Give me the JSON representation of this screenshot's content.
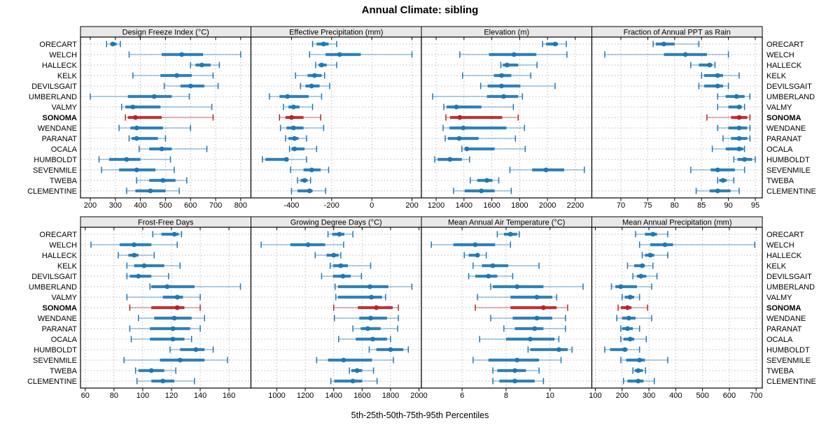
{
  "title": "Annual Climate: sibling",
  "caption": "5th-25th-50th-75th-95th Percentiles",
  "colors": {
    "series": "#1f77b4",
    "highlight": "#b82328",
    "strip_bg": "#e8e8e8",
    "grid": "#bdbdbd",
    "border": "#000000"
  },
  "chart_data": {
    "type": "dotplot-percentile-trellis",
    "percentile_labels": [
      5,
      25,
      50,
      75,
      95
    ],
    "grid": {
      "rows": 2,
      "cols": 4
    },
    "sites": [
      "ORECART",
      "WELCH",
      "HALLECK",
      "KELK",
      "DEVILSGAIT",
      "UMBERLAND",
      "VALMY",
      "SONOMA",
      "WENDANE",
      "PARANAT",
      "OCALA",
      "HUMBOLDT",
      "SEVENMILE",
      "TWEBA",
      "CLEMENTINE"
    ],
    "highlight_site": "SONOMA",
    "panels": [
      {
        "title": "Design Freeze Index (°C)",
        "ticks": [
          200,
          300,
          400,
          500,
          600,
          700,
          800
        ],
        "xlim": [
          161,
          841
        ],
        "values": [
          [
            265,
            280,
            290,
            305,
            320
          ],
          [
            355,
            485,
            565,
            650,
            800
          ],
          [
            600,
            620,
            645,
            680,
            715
          ],
          [
            370,
            480,
            545,
            605,
            690
          ],
          [
            495,
            560,
            600,
            655,
            710
          ],
          [
            200,
            350,
            455,
            525,
            595
          ],
          [
            325,
            340,
            370,
            480,
            685
          ],
          [
            340,
            350,
            380,
            485,
            690
          ],
          [
            315,
            360,
            385,
            490,
            600
          ],
          [
            355,
            365,
            385,
            470,
            500
          ],
          [
            395,
            435,
            485,
            525,
            665
          ],
          [
            235,
            275,
            345,
            400,
            520
          ],
          [
            245,
            315,
            385,
            460,
            535
          ],
          [
            385,
            435,
            490,
            540,
            585
          ],
          [
            345,
            380,
            440,
            500,
            555
          ]
        ]
      },
      {
        "title": "Effective Precipitation (mm)",
        "ticks": [
          -400,
          -200,
          0,
          200
        ],
        "xlim": [
          -602,
          247
        ],
        "values": [
          [
            -295,
            -275,
            -240,
            -215,
            -175
          ],
          [
            -310,
            -230,
            -160,
            -55,
            200
          ],
          [
            -280,
            -265,
            -250,
            -225,
            -175
          ],
          [
            -380,
            -320,
            -285,
            -250,
            -235
          ],
          [
            -355,
            -330,
            -300,
            -260,
            -210
          ],
          [
            -510,
            -460,
            -420,
            -315,
            -250
          ],
          [
            -440,
            -415,
            -390,
            -360,
            -295
          ],
          [
            -460,
            -430,
            -400,
            -340,
            -255
          ],
          [
            -455,
            -425,
            -390,
            -340,
            -240
          ],
          [
            -430,
            -415,
            -385,
            -365,
            -325
          ],
          [
            -410,
            -400,
            -385,
            -335,
            -275
          ],
          [
            -545,
            -530,
            -425,
            -415,
            -325
          ],
          [
            -405,
            -340,
            -300,
            -255,
            -215
          ],
          [
            -370,
            -355,
            -335,
            -320,
            -305
          ],
          [
            -400,
            -370,
            -310,
            -295,
            -230
          ]
        ]
      },
      {
        "title": "Elevation (m)",
        "ticks": [
          1200,
          1400,
          1600,
          1800,
          2000,
          2200
        ],
        "xlim": [
          1094,
          2319
        ],
        "values": [
          [
            1965,
            1990,
            2055,
            2075,
            2135
          ],
          [
            1370,
            1580,
            1760,
            1920,
            2140
          ],
          [
            1665,
            1680,
            1710,
            1790,
            1925
          ],
          [
            1390,
            1615,
            1670,
            1740,
            1880
          ],
          [
            1520,
            1570,
            1670,
            1805,
            2055
          ],
          [
            1175,
            1565,
            1685,
            1790,
            1820
          ],
          [
            1255,
            1275,
            1345,
            1525,
            1755
          ],
          [
            1270,
            1300,
            1370,
            1675,
            1790
          ],
          [
            1250,
            1295,
            1395,
            1705,
            1835
          ],
          [
            1265,
            1285,
            1365,
            1505,
            1770
          ],
          [
            1385,
            1405,
            1420,
            1620,
            1840
          ],
          [
            1190,
            1210,
            1300,
            1385,
            1440
          ],
          [
            1730,
            1890,
            1990,
            2120,
            2265
          ],
          [
            1445,
            1495,
            1565,
            1605,
            1650
          ],
          [
            1325,
            1405,
            1525,
            1620,
            1740
          ]
        ]
      },
      {
        "title": "Fraction of Annual PPT as Rain",
        "ticks": [
          70,
          75,
          80,
          85,
          90,
          95
        ],
        "xlim": [
          64.6,
          96.3
        ],
        "values": [
          [
            76,
            76.5,
            78,
            80,
            84.5
          ],
          [
            67,
            78,
            82,
            86,
            90
          ],
          [
            83,
            84.5,
            86.5,
            87,
            87.5
          ],
          [
            85,
            85.5,
            88,
            89,
            92
          ],
          [
            84.5,
            85.5,
            88,
            89,
            90
          ],
          [
            88,
            89.5,
            91.5,
            93,
            94
          ],
          [
            88,
            90,
            92,
            92.5,
            93
          ],
          [
            86,
            90.5,
            92,
            93.5,
            94
          ],
          [
            88,
            90,
            92,
            93.5,
            94
          ],
          [
            89,
            90.5,
            92,
            93.5,
            94
          ],
          [
            87,
            89.5,
            92,
            92.8,
            93
          ],
          [
            91,
            91.7,
            93,
            94.4,
            95
          ],
          [
            83,
            86.7,
            88,
            91.2,
            93
          ],
          [
            88,
            88.3,
            89,
            89.7,
            91
          ],
          [
            84,
            86.5,
            88,
            90.4,
            92
          ]
        ]
      },
      {
        "title": "Frost-Free Days",
        "ticks": [
          60,
          80,
          100,
          120,
          140,
          160
        ],
        "xlim": [
          56.7,
          175.3
        ],
        "values": [
          [
            107,
            113,
            122,
            125,
            127
          ],
          [
            64,
            84,
            94,
            106,
            124
          ],
          [
            83,
            90,
            94,
            97,
            108
          ],
          [
            89,
            94,
            101,
            115,
            126
          ],
          [
            89,
            91,
            97,
            106,
            118
          ],
          [
            105,
            106,
            117,
            136,
            168
          ],
          [
            89,
            114,
            124,
            128,
            140
          ],
          [
            91,
            106,
            124,
            129,
            140
          ],
          [
            97,
            108,
            122,
            134,
            143
          ],
          [
            91,
            105,
            121,
            133,
            140
          ],
          [
            92,
            105,
            121,
            129,
            134
          ],
          [
            119,
            126,
            137,
            143,
            149
          ],
          [
            87,
            112,
            126,
            143,
            159
          ],
          [
            95,
            97,
            106,
            115,
            123
          ],
          [
            96,
            106,
            114,
            122,
            136
          ]
        ]
      },
      {
        "title": "Growing Degree Days (°C)",
        "ticks": [
          1000,
          1200,
          1400,
          1600,
          1800,
          2000
        ],
        "xlim": [
          818,
          2017
        ],
        "values": [
          [
            1360,
            1390,
            1440,
            1475,
            1535
          ],
          [
            890,
            1095,
            1220,
            1340,
            1470
          ],
          [
            1270,
            1350,
            1400,
            1435,
            1450
          ],
          [
            1375,
            1395,
            1450,
            1500,
            1660
          ],
          [
            1315,
            1395,
            1465,
            1520,
            1595
          ],
          [
            1410,
            1430,
            1655,
            1785,
            1950
          ],
          [
            1415,
            1430,
            1665,
            1740,
            1765
          ],
          [
            1400,
            1570,
            1700,
            1815,
            1855
          ],
          [
            1405,
            1580,
            1660,
            1775,
            1855
          ],
          [
            1535,
            1590,
            1640,
            1730,
            1850
          ],
          [
            1435,
            1555,
            1675,
            1775,
            1800
          ],
          [
            1650,
            1700,
            1800,
            1890,
            1925
          ],
          [
            1280,
            1360,
            1470,
            1670,
            1820
          ],
          [
            1510,
            1525,
            1565,
            1600,
            1680
          ],
          [
            1380,
            1405,
            1535,
            1600,
            1705
          ]
        ]
      },
      {
        "title": "Mean Annual Air Temperature (°C)",
        "ticks": [
          6,
          8,
          10
        ],
        "xlim": [
          4.15,
          11.9
        ],
        "values": [
          [
            7.6,
            7.9,
            8.2,
            8.5,
            8.6
          ],
          [
            4.6,
            5.6,
            6.6,
            7.5,
            8.2
          ],
          [
            6.1,
            6.3,
            6.7,
            6.8,
            7.1
          ],
          [
            6.5,
            6.9,
            7.4,
            8.1,
            9.5
          ],
          [
            6.3,
            6.6,
            7.2,
            7.6,
            8.3
          ],
          [
            7.3,
            7.4,
            8.5,
            9.7,
            11.5
          ],
          [
            6.7,
            8.2,
            9.4,
            10.1,
            10.3
          ],
          [
            6.6,
            8.2,
            9.7,
            10.3,
            10.8
          ],
          [
            7.3,
            8.3,
            9.4,
            10.1,
            10.7
          ],
          [
            7.9,
            8.4,
            9.3,
            9.7,
            10.7
          ],
          [
            6.8,
            8.0,
            9.1,
            10.2,
            10.4
          ],
          [
            9.0,
            9.1,
            10.4,
            10.8,
            11.0
          ],
          [
            6.5,
            7.2,
            8.5,
            9.5,
            10.5
          ],
          [
            7.4,
            7.6,
            8.4,
            8.9,
            9.5
          ],
          [
            7.4,
            7.7,
            8.4,
            9.3,
            9.7
          ]
        ]
      },
      {
        "title": "Mean Annual Precipitation (mm)",
        "ticks": [
          100,
          200,
          300,
          400,
          500,
          600,
          700
        ],
        "xlim": [
          87,
          723
        ],
        "values": [
          [
            250,
            285,
            315,
            330,
            370
          ],
          [
            265,
            305,
            360,
            390,
            695
          ],
          [
            275,
            285,
            305,
            320,
            370
          ],
          [
            220,
            245,
            275,
            285,
            315
          ],
          [
            240,
            255,
            270,
            290,
            330
          ],
          [
            160,
            175,
            195,
            255,
            310
          ],
          [
            200,
            210,
            230,
            245,
            265
          ],
          [
            185,
            195,
            220,
            235,
            295
          ],
          [
            180,
            200,
            225,
            250,
            310
          ],
          [
            195,
            200,
            220,
            240,
            265
          ],
          [
            195,
            205,
            230,
            245,
            290
          ],
          [
            135,
            155,
            210,
            220,
            265
          ],
          [
            195,
            215,
            265,
            285,
            370
          ],
          [
            240,
            247,
            260,
            277,
            287
          ],
          [
            205,
            220,
            260,
            280,
            320
          ]
        ]
      }
    ]
  }
}
